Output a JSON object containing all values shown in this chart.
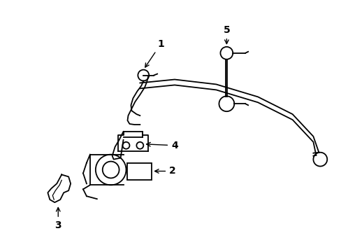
{
  "background_color": "#ffffff",
  "line_color": "#000000",
  "figsize": [
    4.89,
    3.6
  ],
  "dpi": 100,
  "lw": 1.3
}
